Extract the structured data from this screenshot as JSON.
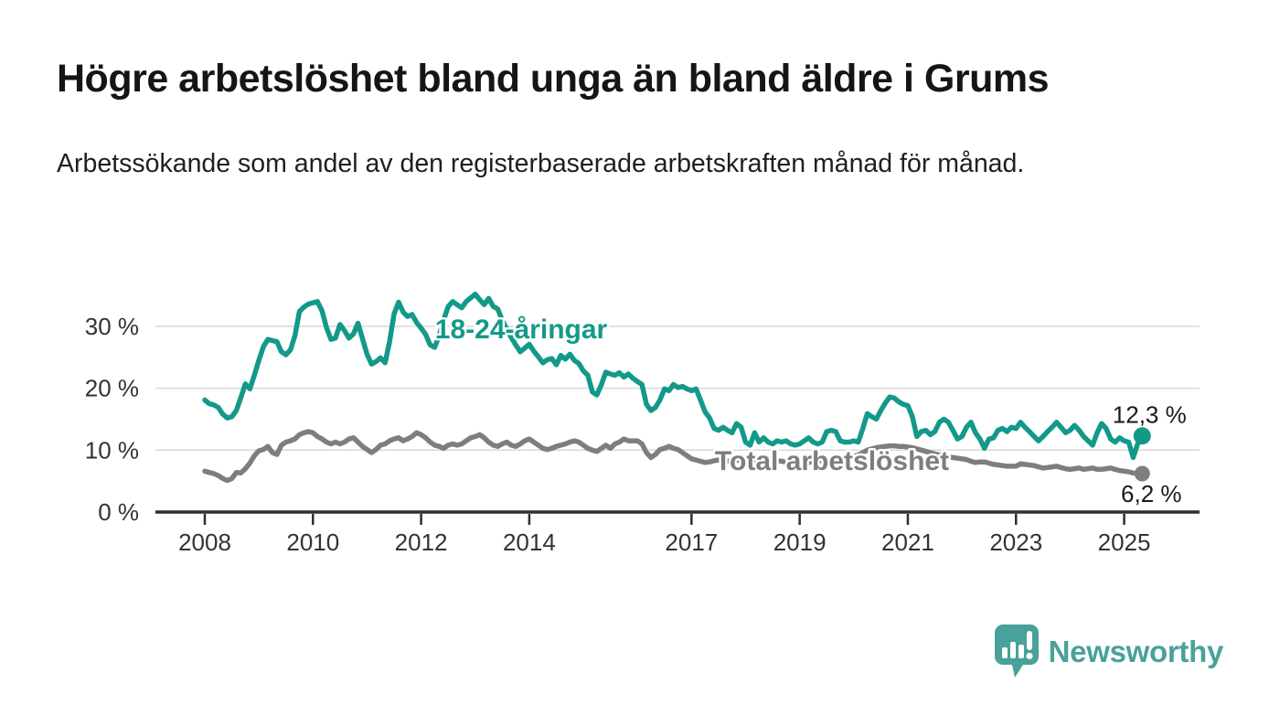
{
  "header": {
    "title": "Högre arbetslöshet bland unga än bland äldre i Grums",
    "subtitle": "Arbetssökande som andel av den registerbaserade arbetskraften månad för månad."
  },
  "branding": {
    "logo_text": "Newsworthy",
    "logo_color": "#48A19A",
    "logo_icon": "speech-bubble-bar-chart-icon"
  },
  "chart_data": {
    "type": "line",
    "title": "Högre arbetslöshet bland unga än bland äldre i Grums",
    "subtitle": "Arbetssökande som andel av den registerbaserade arbetskraften månad för månad.",
    "frequency": "monthly",
    "x_start_year": 2008,
    "x_end": "2025-05",
    "xlim_years": [
      2008,
      2025.5
    ],
    "ylim": [
      0,
      36
    ],
    "grid": "horizontal",
    "legend_position": "inline-labels",
    "x_tick_years": [
      2008,
      2010,
      2012,
      2014,
      2017,
      2019,
      2021,
      2023,
      2025
    ],
    "x_tick_labels": [
      "2008",
      "2010",
      "2012",
      "2014",
      "2017",
      "2019",
      "2021",
      "2023",
      "2025"
    ],
    "y_tick_values": [
      0,
      10,
      20,
      30
    ],
    "y_tick_labels": [
      "0 %",
      "10 %",
      "20 %",
      "30 %"
    ],
    "series": [
      {
        "name": "18-24-åringar",
        "color": "#13998A",
        "end_label": "12,3 %",
        "end_value": 12.3,
        "values": [
          18.1,
          17.5,
          17.3,
          16.9,
          15.8,
          15.2,
          15.4,
          16.4,
          18.5,
          20.7,
          19.9,
          22.1,
          24.5,
          26.7,
          27.9,
          27.7,
          27.5,
          25.9,
          25.4,
          26.2,
          28.5,
          32.4,
          33.1,
          33.6,
          33.8,
          34.0,
          32.5,
          29.8,
          27.9,
          28.1,
          30.3,
          29.3,
          28.1,
          28.8,
          30.5,
          28.0,
          25.5,
          23.9,
          24.3,
          24.9,
          24.1,
          27.5,
          32.0,
          33.9,
          32.3,
          31.6,
          31.9,
          30.6,
          29.7,
          28.7,
          27.0,
          26.6,
          28.5,
          31.0,
          33.2,
          34.0,
          33.5,
          33.0,
          34.0,
          34.6,
          35.2,
          34.3,
          33.5,
          34.5,
          33.2,
          32.8,
          31.0,
          29.5,
          28.2,
          27.0,
          25.9,
          26.5,
          27.1,
          26.0,
          25.1,
          24.1,
          24.6,
          24.8,
          23.8,
          25.3,
          24.7,
          25.5,
          24.5,
          24.0,
          22.8,
          22.1,
          19.4,
          18.9,
          20.6,
          22.6,
          22.3,
          22.1,
          22.5,
          21.8,
          22.3,
          21.6,
          21.1,
          20.6,
          17.4,
          16.4,
          16.9,
          18.1,
          19.9,
          19.6,
          20.6,
          20.1,
          20.3,
          19.9,
          19.6,
          19.9,
          18.1,
          16.2,
          15.2,
          13.5,
          13.2,
          13.7,
          13.2,
          12.8,
          14.3,
          13.7,
          11.3,
          10.8,
          12.8,
          11.3,
          12.0,
          11.3,
          11.0,
          11.5,
          11.3,
          11.5,
          11.0,
          10.8,
          11.0,
          11.5,
          12.0,
          11.3,
          11.0,
          11.3,
          13.0,
          13.2,
          13.0,
          11.5,
          11.3,
          11.3,
          11.5,
          11.3,
          13.5,
          15.9,
          15.4,
          15.0,
          16.4,
          17.6,
          18.6,
          18.4,
          17.8,
          17.4,
          17.2,
          15.4,
          12.2,
          13.0,
          13.2,
          12.5,
          13.0,
          14.5,
          15.0,
          14.5,
          13.2,
          11.8,
          12.2,
          13.7,
          14.5,
          12.8,
          11.8,
          10.3,
          11.8,
          12.0,
          13.2,
          13.5,
          13.0,
          13.7,
          13.5,
          14.5,
          13.7,
          13.0,
          12.2,
          11.5,
          12.2,
          13.0,
          13.7,
          14.5,
          13.7,
          12.8,
          13.2,
          14.0,
          13.2,
          12.2,
          11.5,
          10.8,
          12.8,
          14.3,
          13.5,
          11.8,
          11.3,
          12.0,
          11.5,
          11.3,
          8.8,
          11.0,
          12.3
        ]
      },
      {
        "name": "Total arbetslöshet",
        "color": "#7E7E7E",
        "end_label": "6,2 %",
        "end_value": 6.2,
        "values": [
          6.6,
          6.4,
          6.2,
          5.9,
          5.4,
          5.1,
          5.4,
          6.4,
          6.3,
          7.0,
          7.9,
          9.1,
          9.9,
          10.1,
          10.6,
          9.6,
          9.3,
          10.8,
          11.3,
          11.5,
          11.8,
          12.5,
          12.8,
          13.0,
          12.8,
          12.2,
          11.8,
          11.3,
          11.0,
          11.3,
          11.0,
          11.3,
          11.8,
          12.0,
          11.3,
          10.6,
          10.1,
          9.6,
          10.1,
          10.8,
          11.0,
          11.5,
          11.8,
          12.0,
          11.5,
          11.8,
          12.2,
          12.8,
          12.5,
          12.0,
          11.3,
          10.8,
          10.6,
          10.3,
          10.8,
          11.0,
          10.8,
          11.0,
          11.5,
          12.0,
          12.2,
          12.5,
          12.0,
          11.3,
          10.8,
          10.6,
          11.0,
          11.3,
          10.8,
          10.6,
          11.0,
          11.5,
          11.8,
          11.3,
          10.8,
          10.3,
          10.1,
          10.3,
          10.6,
          10.8,
          11.0,
          11.3,
          11.5,
          11.3,
          10.8,
          10.3,
          10.0,
          9.8,
          10.3,
          10.8,
          10.3,
          11.0,
          11.3,
          11.8,
          11.5,
          11.5,
          11.5,
          11.0,
          9.6,
          8.8,
          9.3,
          10.1,
          10.3,
          10.6,
          10.3,
          10.1,
          9.6,
          9.1,
          8.6,
          8.4,
          8.2,
          8.0,
          8.1,
          8.3,
          8.4,
          8.3,
          8.2,
          8.3,
          8.4,
          8.3,
          8.2,
          8.1,
          8.0,
          8.1,
          8.2,
          8.3,
          8.4,
          8.3,
          8.2,
          8.1,
          8.2,
          8.3,
          8.2,
          8.1,
          8.0,
          8.1,
          8.2,
          8.3,
          8.4,
          8.5,
          8.4,
          8.5,
          8.6,
          8.8,
          9.0,
          9.2,
          9.6,
          10.0,
          10.2,
          10.4,
          10.5,
          10.6,
          10.7,
          10.7,
          10.6,
          10.6,
          10.5,
          10.4,
          10.2,
          10.0,
          9.8,
          9.6,
          9.4,
          9.2,
          9.0,
          8.9,
          8.8,
          8.7,
          8.6,
          8.5,
          8.2,
          8.0,
          8.1,
          8.1,
          7.9,
          7.7,
          7.6,
          7.5,
          7.4,
          7.4,
          7.4,
          7.8,
          7.7,
          7.6,
          7.5,
          7.3,
          7.1,
          7.2,
          7.3,
          7.4,
          7.2,
          7.0,
          6.9,
          7.0,
          7.1,
          6.9,
          7.0,
          7.1,
          6.9,
          6.9,
          7.0,
          7.1,
          6.9,
          6.7,
          6.6,
          6.5,
          6.3,
          6.2,
          6.2
        ]
      }
    ]
  }
}
